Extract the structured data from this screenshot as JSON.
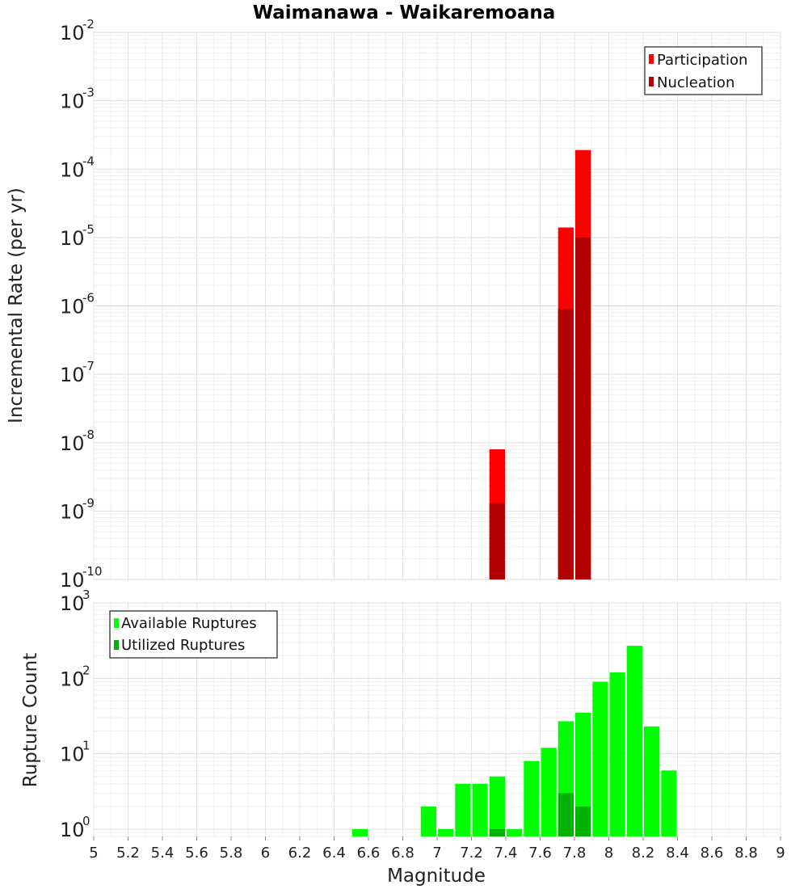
{
  "chart_data": [
    {
      "type": "bar",
      "title": "Waimanawa - Waikaremoana",
      "ylabel": "Incremental Rate (per yr)",
      "xlabel": "",
      "yscale": "log",
      "ylim": [
        1e-10,
        0.01
      ],
      "xlim": [
        5,
        9
      ],
      "grid": true,
      "legend_position": "top-right",
      "bin_width": 0.1,
      "series": [
        {
          "name": "Participation",
          "color": "#ff0000",
          "x": [
            7.35,
            7.75,
            7.85
          ],
          "values": [
            8e-09,
            1.4e-05,
            0.00019
          ]
        },
        {
          "name": "Nucleation",
          "color": "#b30000",
          "x": [
            7.35,
            7.75,
            7.85
          ],
          "values": [
            1.3e-09,
            9e-07,
            1e-05
          ]
        }
      ]
    },
    {
      "type": "bar",
      "title": "",
      "ylabel": "Rupture Count",
      "xlabel": "Magnitude",
      "yscale": "log",
      "ylim": [
        0.8,
        1000
      ],
      "xlim": [
        5,
        9
      ],
      "grid": true,
      "legend_position": "top-left",
      "bin_width": 0.1,
      "series": [
        {
          "name": "Available Ruptures",
          "color": "#00ff00",
          "x": [
            6.55,
            6.95,
            7.05,
            7.15,
            7.25,
            7.35,
            7.45,
            7.55,
            7.65,
            7.75,
            7.85,
            7.95,
            8.05,
            8.15,
            8.25,
            8.35
          ],
          "values": [
            1,
            2,
            1,
            4,
            4,
            5,
            1,
            8,
            12,
            27,
            35,
            90,
            120,
            270,
            23,
            6
          ]
        },
        {
          "name": "Utilized Ruptures",
          "color": "#00b300",
          "x": [
            7.35,
            7.75,
            7.85
          ],
          "values": [
            1,
            3,
            2
          ]
        }
      ]
    }
  ],
  "x_ticks": [
    "5",
    "5.2",
    "5.4",
    "5.6",
    "5.8",
    "6",
    "6.2",
    "6.4",
    "6.6",
    "6.8",
    "7",
    "7.2",
    "7.4",
    "7.6",
    "7.8",
    "8",
    "8.2",
    "8.4",
    "8.6",
    "8.8",
    "9"
  ],
  "top_y_exponents": [
    "-2",
    "-3",
    "-4",
    "-5",
    "-6",
    "-7",
    "-8",
    "-9",
    "-10"
  ],
  "bottom_y_exponents": [
    "3",
    "2",
    "1",
    "0"
  ],
  "y_tick_base": "10"
}
